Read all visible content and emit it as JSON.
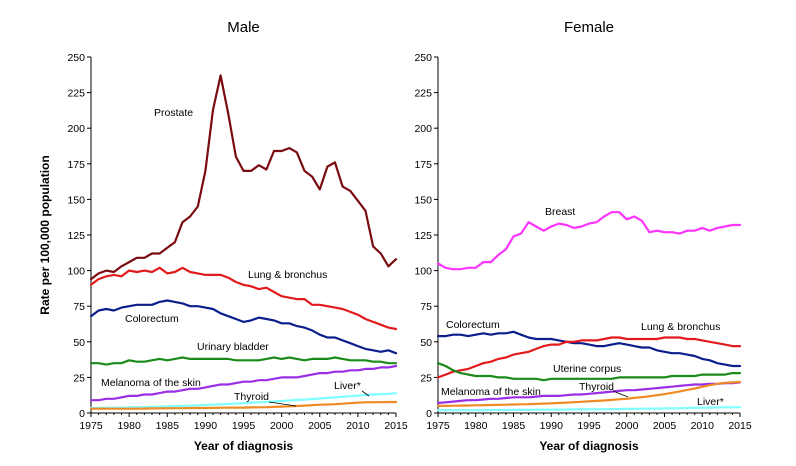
{
  "ylabel": "Rate per 100,000 population",
  "chart_data": [
    {
      "type": "line",
      "title": "Male",
      "xlabel": "Year of diagnosis",
      "xlim": [
        1975,
        2015
      ],
      "ylim": [
        0,
        250
      ],
      "xticks": [
        1975,
        1980,
        1985,
        1990,
        1995,
        2000,
        2005,
        2010,
        2015
      ],
      "yticks": [
        0,
        25,
        50,
        75,
        100,
        125,
        150,
        175,
        200,
        225,
        250
      ],
      "x": [
        1975,
        1976,
        1977,
        1978,
        1979,
        1980,
        1981,
        1982,
        1983,
        1984,
        1985,
        1986,
        1987,
        1988,
        1989,
        1990,
        1991,
        1992,
        1993,
        1994,
        1995,
        1996,
        1997,
        1998,
        1999,
        2000,
        2001,
        2002,
        2003,
        2004,
        2005,
        2006,
        2007,
        2008,
        2009,
        2010,
        2011,
        2012,
        2013,
        2014,
        2015
      ],
      "series": [
        {
          "name": "Prostate",
          "color": "#7a0c10",
          "values": [
            94,
            98,
            100,
            99,
            103,
            106,
            109,
            109,
            112,
            112,
            116,
            120,
            134,
            138,
            145,
            170,
            213,
            237,
            210,
            180,
            170,
            170,
            174,
            171,
            184,
            184,
            186,
            183,
            170,
            166,
            157,
            173,
            176,
            159,
            156,
            149,
            142,
            117,
            112,
            103,
            108
          ]
        },
        {
          "name": "Lung & bronchus",
          "color": "#e31a1c",
          "values": [
            90,
            94,
            96,
            97,
            96,
            100,
            99,
            100,
            99,
            102,
            98,
            99,
            102,
            99,
            98,
            97,
            97,
            97,
            95,
            92,
            90,
            89,
            87,
            88,
            85,
            82,
            81,
            80,
            80,
            76,
            76,
            75,
            74,
            73,
            71,
            69,
            66,
            64,
            62,
            60,
            59
          ]
        },
        {
          "name": "Colorectum",
          "color": "#0a1e8c",
          "values": [
            68,
            72,
            73,
            72,
            74,
            75,
            76,
            76,
            76,
            78,
            79,
            78,
            77,
            75,
            75,
            74,
            73,
            70,
            68,
            66,
            64,
            65,
            67,
            66,
            65,
            63,
            63,
            61,
            60,
            58,
            55,
            53,
            53,
            51,
            49,
            47,
            45,
            44,
            43,
            44,
            42
          ]
        },
        {
          "name": "Urinary bladder",
          "color": "#1a8a1a",
          "values": [
            35,
            35,
            34,
            35,
            35,
            37,
            36,
            36,
            37,
            38,
            37,
            38,
            39,
            38,
            38,
            38,
            38,
            38,
            38,
            37,
            37,
            37,
            37,
            38,
            39,
            38,
            39,
            38,
            37,
            38,
            38,
            38,
            39,
            38,
            37,
            37,
            37,
            36,
            36,
            35,
            35
          ]
        },
        {
          "name": "Melanoma of the skin",
          "color": "#9a2ee6",
          "values": [
            9,
            9,
            10,
            10,
            11,
            12,
            12,
            13,
            13,
            14,
            15,
            15,
            16,
            17,
            17,
            18,
            19,
            20,
            20,
            21,
            22,
            22,
            23,
            23,
            24,
            25,
            25,
            25,
            26,
            27,
            28,
            28,
            29,
            29,
            30,
            30,
            31,
            31,
            32,
            32,
            33
          ]
        },
        {
          "name": "Liver*",
          "color": "#7fffff",
          "values": [
            3.5,
            3.5,
            3.6,
            3.7,
            3.8,
            3.9,
            4.0,
            4.1,
            4.3,
            4.5,
            4.6,
            4.8,
            5.0,
            5.2,
            5.4,
            5.6,
            5.8,
            6.1,
            6.3,
            6.6,
            6.9,
            7.2,
            7.5,
            7.8,
            8.1,
            8.4,
            8.8,
            9.1,
            9.4,
            9.8,
            10.2,
            10.6,
            11.0,
            11.4,
            11.8,
            12.2,
            12.6,
            13.0,
            13.3,
            13.5,
            13.8
          ]
        },
        {
          "name": "Thyroid",
          "color": "#f08a24",
          "values": [
            3,
            3,
            3,
            3,
            3,
            3,
            3,
            3.1,
            3.2,
            3.3,
            3.3,
            3.4,
            3.4,
            3.5,
            3.5,
            3.5,
            3.6,
            3.7,
            3.7,
            3.8,
            3.8,
            3.9,
            4.0,
            4.1,
            4.3,
            4.5,
            4.7,
            4.9,
            5.2,
            5.5,
            5.8,
            6.0,
            6.2,
            6.5,
            6.9,
            7.3,
            7.5,
            7.6,
            7.6,
            7.7,
            7.7
          ]
        }
      ],
      "annotations": [
        "Prostate",
        "Lung & bronchus",
        "Colorectum",
        "Urinary bladder",
        "Melanoma of the skin",
        "Liver*",
        "Thyroid"
      ]
    },
    {
      "type": "line",
      "title": "Female",
      "xlabel": "Year of diagnosis",
      "xlim": [
        1975,
        2015
      ],
      "ylim": [
        0,
        250
      ],
      "xticks": [
        1975,
        1980,
        1985,
        1990,
        1995,
        2000,
        2005,
        2010,
        2015
      ],
      "yticks": [
        0,
        25,
        50,
        75,
        100,
        125,
        150,
        175,
        200,
        225,
        250
      ],
      "x": [
        1975,
        1976,
        1977,
        1978,
        1979,
        1980,
        1981,
        1982,
        1983,
        1984,
        1985,
        1986,
        1987,
        1988,
        1989,
        1990,
        1991,
        1992,
        1993,
        1994,
        1995,
        1996,
        1997,
        1998,
        1999,
        2000,
        2001,
        2002,
        2003,
        2004,
        2005,
        2006,
        2007,
        2008,
        2009,
        2010,
        2011,
        2012,
        2013,
        2014,
        2015
      ],
      "series": [
        {
          "name": "Breast",
          "color": "#ff33ff",
          "values": [
            105,
            102,
            101,
            101,
            102,
            102,
            106,
            106,
            111,
            115,
            124,
            126,
            134,
            131,
            128,
            131,
            133,
            132,
            130,
            131,
            133,
            134,
            138,
            141,
            141,
            136,
            138,
            135,
            127,
            128,
            127,
            127,
            126,
            128,
            128,
            130,
            128,
            130,
            131,
            132,
            132
          ]
        },
        {
          "name": "Colorectum",
          "color": "#0a1e8c",
          "values": [
            54,
            54,
            55,
            55,
            54,
            55,
            56,
            55,
            56,
            56,
            57,
            55,
            53,
            52,
            52,
            52,
            51,
            50,
            49,
            49,
            48,
            47,
            47,
            48,
            49,
            48,
            47,
            46,
            46,
            44,
            43,
            42,
            42,
            41,
            40,
            38,
            37,
            35,
            34,
            33,
            33
          ]
        },
        {
          "name": "Lung & bronchus",
          "color": "#e31a1c",
          "values": [
            25,
            27,
            29,
            30,
            31,
            33,
            35,
            36,
            38,
            39,
            41,
            42,
            43,
            45,
            47,
            48,
            48,
            50,
            50,
            51,
            51,
            51,
            52,
            53,
            53,
            52,
            52,
            52,
            52,
            52,
            53,
            53,
            53,
            52,
            52,
            51,
            50,
            49,
            48,
            47,
            47
          ]
        },
        {
          "name": "Uterine corpus",
          "color": "#1a8a1a",
          "values": [
            35,
            33,
            30,
            28,
            27,
            26,
            26,
            26,
            25,
            25,
            24,
            24,
            24,
            24,
            23,
            24,
            24,
            24,
            24,
            24,
            24,
            24,
            24,
            24,
            25,
            25,
            25,
            25,
            25,
            25,
            25,
            26,
            26,
            26,
            26,
            27,
            27,
            27,
            27,
            28,
            28
          ]
        },
        {
          "name": "Melanoma of the skin",
          "color": "#9a2ee6",
          "values": [
            7,
            7.5,
            8,
            8.5,
            9,
            9,
            9.5,
            10,
            10,
            10.5,
            11,
            11,
            11,
            11.5,
            12,
            12,
            12,
            12.5,
            13,
            13,
            13.5,
            14,
            14.5,
            15,
            15.5,
            16,
            16,
            16.5,
            17,
            17.5,
            18,
            18.5,
            19,
            19.5,
            20,
            20,
            20.5,
            20.5,
            21,
            21,
            21.5
          ]
        },
        {
          "name": "Thyroid",
          "color": "#f08a24",
          "values": [
            5,
            5,
            5.1,
            5.2,
            5.3,
            5.4,
            5.5,
            5.6,
            5.7,
            5.8,
            6,
            6.1,
            6.2,
            6.4,
            6.6,
            6.8,
            7,
            7.3,
            7.6,
            7.9,
            8.2,
            8.5,
            8.8,
            9.2,
            9.6,
            10,
            10.6,
            11.2,
            11.8,
            12.5,
            13.3,
            14.2,
            15.2,
            16.2,
            17.2,
            18.4,
            19.5,
            20.5,
            21.2,
            21.5,
            21.8
          ]
        },
        {
          "name": "Liver*",
          "color": "#7fffff",
          "values": [
            2,
            2,
            2,
            2,
            2,
            2,
            2,
            2.1,
            2.1,
            2.1,
            2.2,
            2.2,
            2.2,
            2.3,
            2.3,
            2.3,
            2.4,
            2.4,
            2.5,
            2.5,
            2.6,
            2.6,
            2.7,
            2.7,
            2.8,
            2.9,
            2.9,
            3,
            3.1,
            3.1,
            3.2,
            3.3,
            3.4,
            3.5,
            3.6,
            3.7,
            3.8,
            3.9,
            4,
            4,
            4.1
          ]
        }
      ],
      "annotations": [
        "Breast",
        "Colorectum",
        "Lung & bronchus",
        "Uterine corpus",
        "Melanoma of the skin",
        "Thyroid",
        "Liver*"
      ]
    }
  ]
}
